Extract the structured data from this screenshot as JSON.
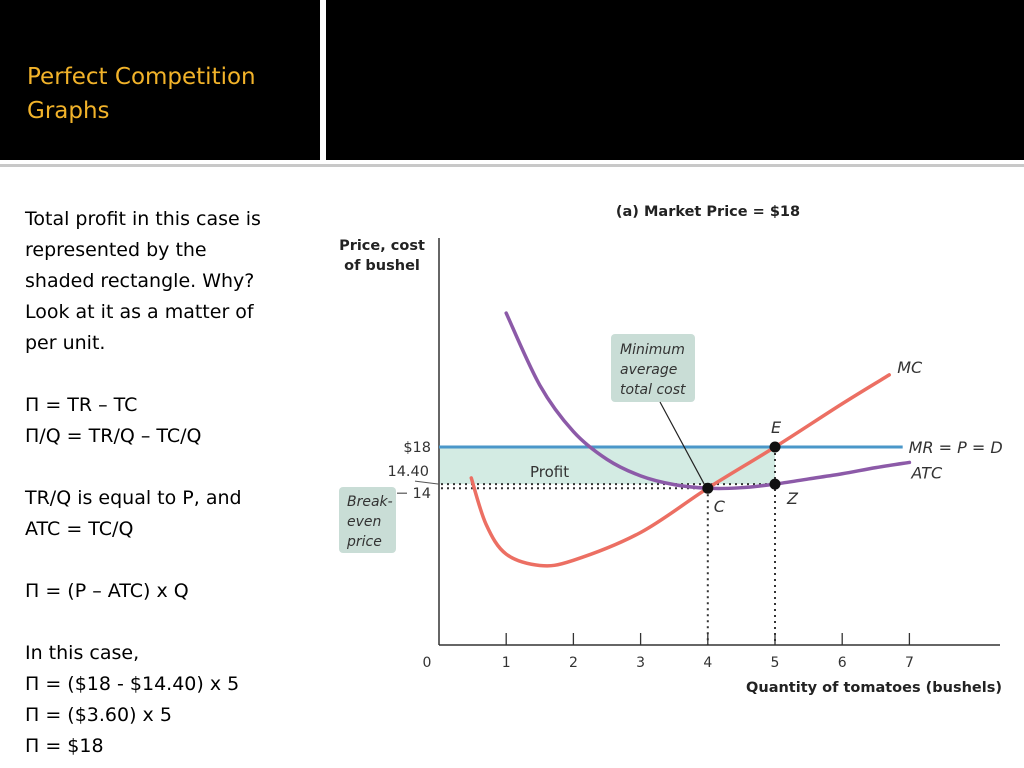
{
  "slide": {
    "title_lines": [
      "Perfect Competition",
      "Graphs"
    ],
    "body_lines": [
      "Total profit in this case is",
      "represented by the",
      "shaded rectangle.  Why?",
      "Look at it as a matter of",
      "per unit.",
      "",
      "Π = TR – TC",
      "Π/Q = TR/Q – TC/Q",
      "",
      "TR/Q is equal to P, and",
      "ATC = TC/Q",
      "",
      "Π = (P – ATC) x Q",
      "",
      "In this case,",
      "Π = ($18 - $14.40) x 5",
      "Π = ($3.60) x 5",
      "Π = $18"
    ]
  },
  "chart_data": {
    "type": "line",
    "title": "(a)  Market Price = $18",
    "ylabel": "Price, cost of bushel",
    "xlabel": "Quantity of tomatoes (bushels)",
    "x_ticks": [
      "0",
      "1",
      "2",
      "3",
      "4",
      "5",
      "6",
      "7"
    ],
    "xlim": [
      0,
      8.6
    ],
    "y_ticks": [
      {
        "value": 18,
        "label": "$18"
      },
      {
        "value": 14.4,
        "label": "14.40"
      },
      {
        "value": 14,
        "label": "14"
      }
    ],
    "series": [
      {
        "name": "MC",
        "color": "#ec6f63",
        "points": [
          [
            0.48,
            15.0
          ],
          [
            0.7,
            10.5
          ],
          [
            1.0,
            7.6
          ],
          [
            1.5,
            6.5
          ],
          [
            2.0,
            7.0
          ],
          [
            3.0,
            9.7
          ],
          [
            4.0,
            14.0
          ],
          [
            5.0,
            18.0
          ],
          [
            6.0,
            22.2
          ],
          [
            6.7,
            25.0
          ]
        ]
      },
      {
        "name": "ATC",
        "color": "#8c5aa8",
        "points": [
          [
            1.0,
            31.0
          ],
          [
            1.5,
            24.0
          ],
          [
            2.0,
            19.5
          ],
          [
            2.5,
            16.8
          ],
          [
            3.0,
            15.2
          ],
          [
            3.5,
            14.35
          ],
          [
            4.0,
            14.0
          ],
          [
            4.5,
            14.05
          ],
          [
            5.0,
            14.4
          ],
          [
            5.5,
            14.9
          ],
          [
            6.0,
            15.4
          ],
          [
            6.5,
            16.0
          ],
          [
            7.0,
            16.5
          ]
        ]
      },
      {
        "name": "MR = P = D",
        "color": "#4a97c9",
        "points": [
          [
            0,
            18
          ],
          [
            6.9,
            18
          ]
        ]
      }
    ],
    "points": [
      {
        "label": "E",
        "x": 5,
        "y": 18
      },
      {
        "label": "C",
        "x": 4,
        "y": 14
      },
      {
        "label": "Z",
        "x": 5,
        "y": 14.4
      }
    ],
    "profit_region": {
      "label": "Profit",
      "x": [
        0,
        5
      ],
      "y": [
        14.4,
        18
      ],
      "color": "#d3ebe3"
    },
    "annotations": [
      {
        "text_lines": [
          "Minimum",
          "average",
          "total cost"
        ],
        "points_to": "C"
      },
      {
        "text_lines": [
          "Break-",
          "even",
          "price"
        ],
        "points_to": "14"
      }
    ],
    "grid": false,
    "legend": "none"
  }
}
